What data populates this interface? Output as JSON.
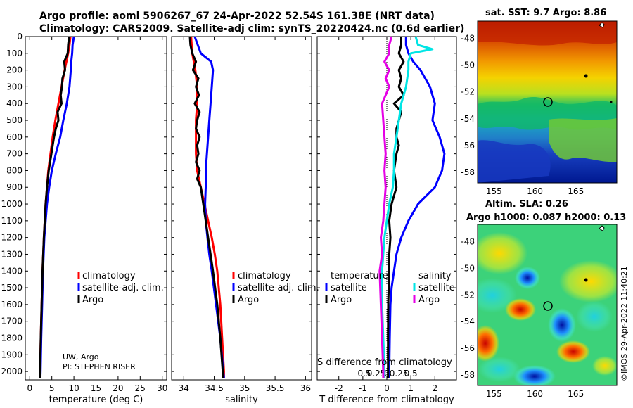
{
  "header": {
    "title_line1": "Argo profile: aoml 5906267_67 24-Apr-2022 52.54S 161.38E (NRT data)",
    "title_line2": "Climatology: CARS2009. Satellite-adj clim: synTS_20220424.nc (0.6d earlier)"
  },
  "credits": {
    "line1": "UW, Argo",
    "line2": "PI: STEPHEN RISER",
    "imos": "©IMOS 29-Apr-2022 11:40:21"
  },
  "colors": {
    "climatology": "#ff0000",
    "satellite": "#0000ff",
    "argo": "#000000",
    "sat_salinity": "#00e5e5",
    "argo_salinity": "#e600e6"
  },
  "chart_data": [
    {
      "type": "line",
      "id": "temperature",
      "xlabel": "temperature (deg C)",
      "ylabel": "",
      "xlim": [
        -1,
        31
      ],
      "ylim": [
        2050,
        0
      ],
      "xticks": [
        0,
        5,
        10,
        15,
        20,
        25,
        30
      ],
      "yticks": [
        0,
        100,
        200,
        300,
        400,
        500,
        600,
        700,
        800,
        900,
        1000,
        1100,
        1200,
        1300,
        1400,
        1500,
        1600,
        1700,
        1800,
        1900,
        2000
      ],
      "legend": [
        "climatology",
        "satellite-adj. clim.",
        "Argo"
      ],
      "series": [
        {
          "name": "climatology",
          "depth": [
            0,
            50,
            100,
            150,
            200,
            300,
            400,
            500,
            600,
            700,
            800,
            900,
            1000,
            1200,
            1400,
            1600,
            1800,
            2000,
            2040
          ],
          "values": [
            9.2,
            9.0,
            8.7,
            8.3,
            7.9,
            7.2,
            6.5,
            5.8,
            5.2,
            4.7,
            4.2,
            3.9,
            3.6,
            3.2,
            2.9,
            2.7,
            2.5,
            2.35,
            2.3
          ]
        },
        {
          "name": "satellite-adj. clim.",
          "depth": [
            0,
            50,
            100,
            150,
            200,
            300,
            400,
            500,
            600,
            700,
            800,
            900,
            1000,
            1200,
            1400,
            1600,
            1800,
            2000,
            2040
          ],
          "values": [
            10.0,
            9.7,
            9.6,
            9.4,
            9.3,
            9.0,
            8.4,
            7.6,
            6.9,
            5.9,
            5.0,
            4.4,
            3.9,
            3.3,
            3.0,
            2.8,
            2.6,
            2.45,
            2.4
          ]
        },
        {
          "name": "Argo",
          "depth": [
            0,
            50,
            100,
            150,
            200,
            250,
            300,
            350,
            400,
            450,
            500,
            550,
            600,
            650,
            700,
            800,
            900,
            1000,
            1200,
            1400,
            1600,
            1800,
            2000,
            2040
          ],
          "values": [
            8.9,
            8.7,
            8.6,
            7.8,
            8.0,
            7.4,
            7.3,
            7.0,
            7.2,
            6.3,
            6.5,
            5.9,
            5.5,
            5.2,
            4.9,
            4.3,
            3.9,
            3.6,
            3.2,
            2.9,
            2.7,
            2.5,
            2.35,
            2.3
          ]
        }
      ]
    },
    {
      "type": "line",
      "id": "salinity",
      "xlabel": "salinity",
      "xlim": [
        33.8,
        36.1
      ],
      "ylim": [
        2050,
        0
      ],
      "xticks": [
        34,
        34.5,
        35,
        35.5,
        36
      ],
      "legend": [
        "climatology",
        "satellite-adj. clim.",
        "Argo"
      ],
      "series": [
        {
          "name": "climatology",
          "depth": [
            0,
            100,
            200,
            300,
            400,
            500,
            600,
            700,
            800,
            900,
            1000,
            1100,
            1200,
            1300,
            1400,
            1600,
            1800,
            2000,
            2040
          ],
          "values": [
            34.12,
            34.14,
            34.19,
            34.22,
            34.22,
            34.2,
            34.2,
            34.2,
            34.22,
            34.28,
            34.34,
            34.4,
            34.46,
            34.51,
            34.55,
            34.6,
            34.63,
            34.66,
            34.66
          ]
        },
        {
          "name": "satellite-adj. clim.",
          "depth": [
            0,
            50,
            100,
            150,
            200,
            300,
            400,
            500,
            600,
            700,
            800,
            900,
            1000,
            1100,
            1200,
            1300,
            1400,
            1600,
            1800,
            2000,
            2040
          ],
          "values": [
            34.18,
            34.23,
            34.28,
            34.45,
            34.48,
            34.46,
            34.44,
            34.42,
            34.4,
            34.38,
            34.36,
            34.36,
            34.35,
            34.36,
            34.39,
            34.42,
            34.46,
            34.53,
            34.6,
            34.65,
            34.66
          ]
        },
        {
          "name": "Argo",
          "depth": [
            0,
            50,
            100,
            150,
            200,
            250,
            300,
            350,
            400,
            450,
            500,
            550,
            600,
            650,
            700,
            750,
            800,
            850,
            900,
            1000,
            1100,
            1200,
            1300,
            1400,
            1600,
            1800,
            2000,
            2040
          ],
          "values": [
            34.1,
            34.11,
            34.14,
            34.2,
            34.15,
            34.24,
            34.2,
            34.25,
            34.18,
            34.26,
            34.22,
            34.2,
            34.26,
            34.22,
            34.24,
            34.2,
            34.26,
            34.22,
            34.28,
            34.32,
            34.36,
            34.4,
            34.44,
            34.48,
            34.55,
            34.6,
            34.64,
            34.65
          ]
        }
      ]
    },
    {
      "type": "line",
      "id": "difference",
      "xlabel": "T difference from climatology",
      "top_label": "S difference from climatology",
      "xlim": [
        -2.9,
        2.9
      ],
      "ylim": [
        2050,
        0
      ],
      "xticks": [
        -2,
        -1,
        0,
        1,
        2
      ],
      "top_ticks": [
        "-0.5",
        "-0.25",
        "0",
        "0.25",
        "0.5"
      ],
      "top_tick_values_in_T_units": [
        -1.0,
        -0.5,
        0,
        0.5,
        1.0
      ],
      "legend_titles": [
        "temperature",
        "salinity"
      ],
      "legend_left": [
        "satellite",
        "Argo"
      ],
      "legend_right": [
        "satellite",
        "Argo"
      ],
      "series": [
        {
          "name": "T satellite",
          "depth": [
            0,
            50,
            100,
            150,
            200,
            300,
            400,
            500,
            600,
            700,
            800,
            900,
            1000,
            1100,
            1200,
            1300,
            1400,
            1500,
            1600,
            1800,
            2000,
            2040
          ],
          "values": [
            0.8,
            0.8,
            0.9,
            1.1,
            1.4,
            1.8,
            2.0,
            1.9,
            2.2,
            2.4,
            2.3,
            2.0,
            1.3,
            0.9,
            0.6,
            0.4,
            0.3,
            0.2,
            0.15,
            0.12,
            0.1,
            0.1
          ]
        },
        {
          "name": "T Argo",
          "depth": [
            0,
            50,
            100,
            150,
            200,
            250,
            300,
            350,
            400,
            450,
            500,
            550,
            600,
            650,
            700,
            800,
            900,
            1000,
            1100,
            1200,
            1300,
            1400,
            1500,
            1600,
            1800,
            2000,
            2040
          ],
          "values": [
            0.6,
            0.6,
            0.5,
            0.7,
            0.5,
            0.6,
            0.5,
            0.7,
            0.3,
            0.6,
            0.5,
            0.4,
            0.4,
            0.5,
            0.4,
            0.3,
            0.4,
            0.2,
            0.1,
            0.15,
            0.1,
            0.1,
            0.08,
            0.06,
            0.05,
            0.05,
            0.05
          ]
        },
        {
          "name": "S satellite",
          "depth": [
            0,
            50,
            75,
            100,
            150,
            200,
            300,
            400,
            500,
            600,
            700,
            800,
            900,
            1000,
            1200,
            1400,
            1600,
            1800,
            2000,
            2040
          ],
          "values": [
            1.2,
            1.3,
            1.9,
            1.0,
            0.9,
            0.9,
            0.8,
            0.6,
            0.5,
            0.4,
            0.3,
            0.3,
            0.25,
            0.1,
            -0.1,
            -0.2,
            -0.2,
            -0.15,
            -0.1,
            -0.1
          ]
        },
        {
          "name": "S Argo",
          "depth": [
            0,
            50,
            100,
            150,
            200,
            250,
            300,
            400,
            500,
            600,
            700,
            800,
            900,
            1000,
            1100,
            1200,
            1300,
            1400,
            1600,
            1800,
            2000,
            2040
          ],
          "values": [
            0.2,
            0.1,
            0.1,
            -0.1,
            0.1,
            -0.05,
            0.1,
            -0.2,
            -0.15,
            -0.1,
            -0.05,
            -0.1,
            -0.05,
            -0.1,
            -0.15,
            -0.25,
            -0.2,
            -0.3,
            -0.25,
            -0.2,
            -0.15,
            -0.15
          ]
        }
      ]
    },
    {
      "type": "heatmap",
      "id": "sst_map",
      "title": "sat. SST: 9.7 Argo: 8.86",
      "xlim": [
        153,
        170
      ],
      "ylim": [
        -58.8,
        -46.7
      ],
      "xticks": [
        155,
        160,
        165
      ],
      "yticks": [
        -48,
        -50,
        -52,
        -54,
        -56,
        -58
      ],
      "profile_location": {
        "lon": 161.38,
        "lat": -52.54
      }
    },
    {
      "type": "heatmap",
      "id": "sla_map",
      "title_line1": "Altim. SLA: 0.26",
      "title_line2": "Argo h1000: 0.087 h2000: 0.13",
      "xlim": [
        153,
        170
      ],
      "ylim": [
        -58.8,
        -46.7
      ],
      "xticks": [
        155,
        160,
        165
      ],
      "yticks": [
        -48,
        -50,
        -52,
        -54,
        -56,
        -58
      ],
      "profile_location": {
        "lon": 161.38,
        "lat": -52.54
      }
    }
  ]
}
